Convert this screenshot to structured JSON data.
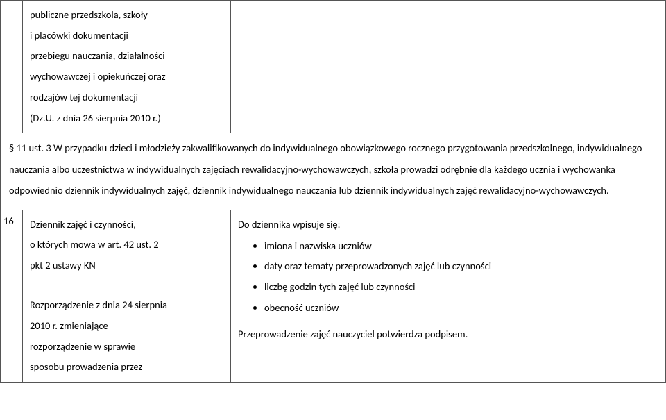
{
  "row1": {
    "left_lines": [
      "publiczne przedszkola, szkoły",
      "i placówki dokumentacji",
      "przebiegu nauczania, działalności",
      "wychowawczej i opiekuńczej oraz",
      "rodzajów tej dokumentacji",
      "(Dz.U. z dnia 26 sierpnia 2010 r.)"
    ]
  },
  "paragraph": "§ 11 ust. 3 W przypadku dzieci i młodzieży zakwalifikowanych do indywidualnego obowiązkowego rocznego przygotowania przedszkolnego, indywidualnego nauczania albo uczestnictwa w indywidualnych zajęciach rewalidacyjno-wychowawczych, szkoła prowadzi odrębnie dla każdego ucznia i wychowanka odpowiednio dziennik indywidualnych zajęć, dziennik indywidualnego nauczania lub dziennik indywidualnych zajęć rewalidacyjno-wychowawczych.",
  "row3": {
    "num": "16",
    "left_lines": [
      "Dziennik zajęć i czynności,",
      "o których mowa w art. 42 ust. 2",
      "pkt 2 ustawy KN",
      "",
      "Rozporządzenie z dnia 24 sierpnia",
      "2010 r. zmieniające",
      "rozporządzenie w sprawie",
      "sposobu prowadzenia przez"
    ],
    "right_intro": "Do dziennika wpisuje się:",
    "right_items": [
      "imiona i nazwiska uczniów",
      "daty oraz tematy przeprowadzonych zajęć lub czynności",
      "liczbę godzin tych zajęć lub czynności",
      "obecność uczniów"
    ],
    "right_outro": "Przeprowadzenie zajęć nauczyciel potwierdza podpisem."
  }
}
